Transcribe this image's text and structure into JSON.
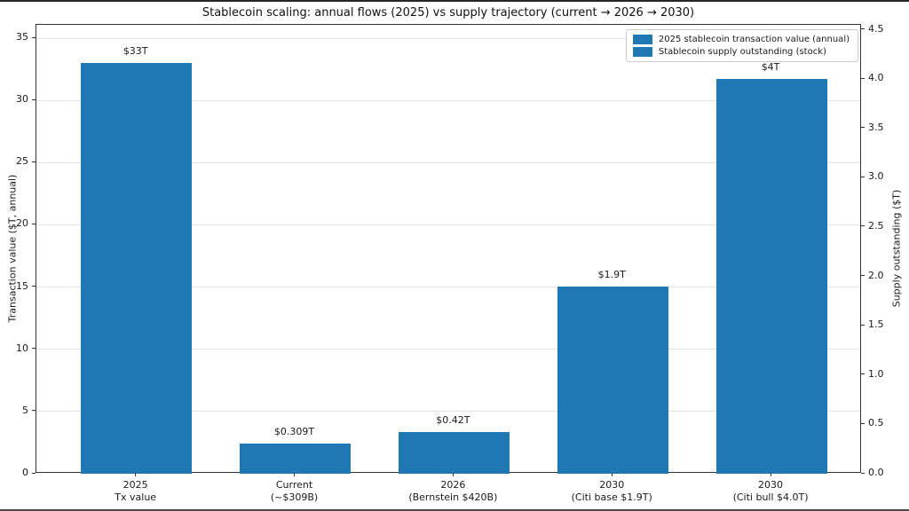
{
  "title": "Stablecoin scaling: annual flows (2025) vs supply trajectory (current → 2026 → 2030)",
  "legend": {
    "items": [
      {
        "label": "2025 stablecoin transaction value (annual)",
        "color": "#1f77b4"
      },
      {
        "label": "Stablecoin supply outstanding (stock)",
        "color": "#1f77b4"
      }
    ]
  },
  "chart_data": {
    "type": "bar",
    "title": "Stablecoin scaling: annual flows (2025) vs supply trajectory (current → 2026 → 2030)",
    "bar_color": "#1f77b4",
    "grid": "horizontal-light",
    "legend_position": "upper right",
    "categories": [
      [
        "2025",
        "Tx value"
      ],
      [
        "Current",
        "(~$309B)"
      ],
      [
        "2026",
        "(Bernstein $420B)"
      ],
      [
        "2030",
        "(Citi base $1.9T)"
      ],
      [
        "2030",
        "(Citi bull $4.0T)"
      ]
    ],
    "bars": [
      {
        "series": "2025 stablecoin transaction value (annual)",
        "axis": "left",
        "value": 33,
        "value_label": "$33T"
      },
      {
        "series": "Stablecoin supply outstanding (stock)",
        "axis": "right",
        "value": 0.309,
        "value_label": "$0.309T"
      },
      {
        "series": "Stablecoin supply outstanding (stock)",
        "axis": "right",
        "value": 0.42,
        "value_label": "$0.42T"
      },
      {
        "series": "Stablecoin supply outstanding (stock)",
        "axis": "right",
        "value": 1.9,
        "value_label": "$1.9T"
      },
      {
        "series": "Stablecoin supply outstanding (stock)",
        "axis": "right",
        "value": 4.0,
        "value_label": "$4T"
      }
    ],
    "left_axis": {
      "label": "Transaction value ($T, annual)",
      "ticks": [
        "0",
        "5",
        "10",
        "15",
        "20",
        "25",
        "30",
        "35"
      ],
      "range": [
        0,
        36.07
      ]
    },
    "right_axis": {
      "label": "Supply outstanding ($T)",
      "ticks": [
        "0.0",
        "0.5",
        "1.0",
        "1.5",
        "2.0",
        "2.5",
        "3.0",
        "3.5",
        "4.0",
        "4.5"
      ],
      "range": [
        0,
        4.55
      ]
    },
    "layout": {
      "xlim": [
        -0.63,
        4.57
      ],
      "bar_width_units": 0.7
    }
  }
}
